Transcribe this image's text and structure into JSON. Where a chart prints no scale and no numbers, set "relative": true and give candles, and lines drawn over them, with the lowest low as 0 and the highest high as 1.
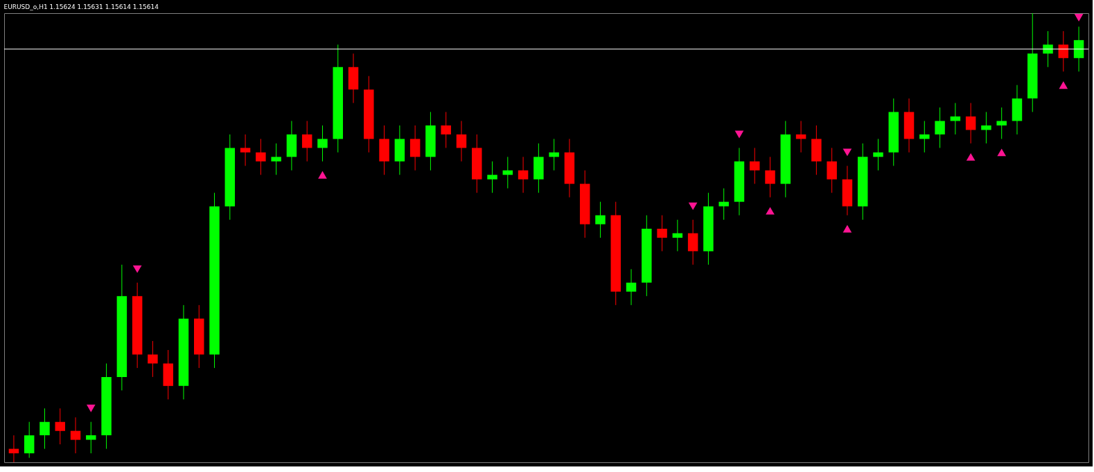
{
  "chart_data": {
    "type": "candlestick",
    "title": "EURUSD_o,H1  1.15624 1.15631 1.15614 1.15614",
    "relative": true,
    "categories": [
      null,
      null,
      null,
      null,
      null,
      null,
      null,
      null,
      null,
      null,
      null,
      null,
      null,
      null,
      null,
      null,
      null,
      null,
      null,
      null,
      null,
      null,
      null,
      null,
      null,
      null,
      null,
      null,
      null,
      null,
      null,
      null,
      null,
      null,
      null,
      null,
      null,
      null,
      null,
      null,
      null,
      null,
      null,
      null,
      null,
      null,
      null,
      null,
      null,
      null,
      null,
      null,
      null,
      null,
      null,
      null,
      null,
      null,
      null,
      null,
      null,
      null,
      null,
      null,
      null,
      null,
      null,
      null,
      null,
      null
    ],
    "ohlc": [
      [
        0.03,
        0.06,
        0.0,
        0.02
      ],
      [
        0.02,
        0.09,
        0.01,
        0.06
      ],
      [
        0.06,
        0.12,
        0.03,
        0.09
      ],
      [
        0.09,
        0.12,
        0.04,
        0.07
      ],
      [
        0.07,
        0.1,
        0.02,
        0.05
      ],
      [
        0.05,
        0.09,
        0.02,
        0.06
      ],
      [
        0.06,
        0.22,
        0.03,
        0.19
      ],
      [
        0.19,
        0.44,
        0.16,
        0.37
      ],
      [
        0.37,
        0.4,
        0.21,
        0.24
      ],
      [
        0.24,
        0.27,
        0.19,
        0.22
      ],
      [
        0.22,
        0.25,
        0.14,
        0.17
      ],
      [
        0.17,
        0.35,
        0.14,
        0.32
      ],
      [
        0.32,
        0.35,
        0.21,
        0.24
      ],
      [
        0.24,
        0.6,
        0.21,
        0.57
      ],
      [
        0.57,
        0.73,
        0.54,
        0.7
      ],
      [
        0.7,
        0.73,
        0.66,
        0.69
      ],
      [
        0.69,
        0.72,
        0.64,
        0.67
      ],
      [
        0.67,
        0.71,
        0.64,
        0.68
      ],
      [
        0.68,
        0.76,
        0.65,
        0.73
      ],
      [
        0.73,
        0.76,
        0.67,
        0.7
      ],
      [
        0.7,
        0.75,
        0.67,
        0.72
      ],
      [
        0.72,
        0.93,
        0.69,
        0.88
      ],
      [
        0.88,
        0.91,
        0.8,
        0.83
      ],
      [
        0.83,
        0.86,
        0.69,
        0.72
      ],
      [
        0.72,
        0.75,
        0.64,
        0.67
      ],
      [
        0.67,
        0.75,
        0.64,
        0.72
      ],
      [
        0.72,
        0.75,
        0.65,
        0.68
      ],
      [
        0.68,
        0.78,
        0.65,
        0.75
      ],
      [
        0.75,
        0.78,
        0.7,
        0.73
      ],
      [
        0.73,
        0.76,
        0.67,
        0.7
      ],
      [
        0.7,
        0.73,
        0.6,
        0.63
      ],
      [
        0.63,
        0.67,
        0.6,
        0.64
      ],
      [
        0.64,
        0.68,
        0.61,
        0.65
      ],
      [
        0.65,
        0.68,
        0.6,
        0.63
      ],
      [
        0.63,
        0.71,
        0.6,
        0.68
      ],
      [
        0.68,
        0.72,
        0.65,
        0.69
      ],
      [
        0.69,
        0.72,
        0.59,
        0.62
      ],
      [
        0.62,
        0.65,
        0.5,
        0.53
      ],
      [
        0.53,
        0.58,
        0.5,
        0.55
      ],
      [
        0.55,
        0.58,
        0.35,
        0.38
      ],
      [
        0.38,
        0.43,
        0.35,
        0.4
      ],
      [
        0.4,
        0.55,
        0.37,
        0.52
      ],
      [
        0.52,
        0.55,
        0.47,
        0.5
      ],
      [
        0.5,
        0.54,
        0.47,
        0.51
      ],
      [
        0.51,
        0.54,
        0.44,
        0.47
      ],
      [
        0.47,
        0.6,
        0.44,
        0.57
      ],
      [
        0.57,
        0.61,
        0.54,
        0.58
      ],
      [
        0.58,
        0.7,
        0.55,
        0.67
      ],
      [
        0.67,
        0.7,
        0.62,
        0.65
      ],
      [
        0.65,
        0.68,
        0.59,
        0.62
      ],
      [
        0.62,
        0.76,
        0.59,
        0.73
      ],
      [
        0.73,
        0.76,
        0.69,
        0.72
      ],
      [
        0.72,
        0.75,
        0.64,
        0.67
      ],
      [
        0.67,
        0.7,
        0.6,
        0.63
      ],
      [
        0.63,
        0.66,
        0.55,
        0.57
      ],
      [
        0.57,
        0.71,
        0.54,
        0.68
      ],
      [
        0.68,
        0.72,
        0.65,
        0.69
      ],
      [
        0.69,
        0.81,
        0.66,
        0.78
      ],
      [
        0.78,
        0.81,
        0.69,
        0.72
      ],
      [
        0.72,
        0.76,
        0.69,
        0.73
      ],
      [
        0.73,
        0.79,
        0.7,
        0.76
      ],
      [
        0.76,
        0.8,
        0.73,
        0.77
      ],
      [
        0.77,
        0.8,
        0.71,
        0.74
      ],
      [
        0.74,
        0.78,
        0.71,
        0.75
      ],
      [
        0.75,
        0.79,
        0.72,
        0.76
      ],
      [
        0.76,
        0.84,
        0.73,
        0.81
      ],
      [
        0.81,
        1.0,
        0.78,
        0.91
      ],
      [
        0.91,
        0.96,
        0.88,
        0.93
      ],
      [
        0.93,
        0.96,
        0.87,
        0.9
      ],
      [
        0.9,
        0.97,
        0.87,
        0.94
      ]
    ],
    "colors": [
      "#ff0000",
      "#00ff00",
      "#00ff00",
      "#ff0000",
      "#ff0000",
      "#00ff00",
      "#00ff00",
      "#00ff00",
      "#ff0000",
      "#ff0000",
      "#ff0000",
      "#00ff00",
      "#ff0000",
      "#00ff00",
      "#00ff00",
      "#ff0000",
      "#ff0000",
      "#00ff00",
      "#00ff00",
      "#ff0000",
      "#00ff00",
      "#00ff00",
      "#ff0000",
      "#ff0000",
      "#ff0000",
      "#00ff00",
      "#ff0000",
      "#00ff00",
      "#ff0000",
      "#ff0000",
      "#ff0000",
      "#00ff00",
      "#00ff00",
      "#ff0000",
      "#00ff00",
      "#00ff00",
      "#ff0000",
      "#ff0000",
      "#00ff00",
      "#ff0000",
      "#00ff00",
      "#00ff00",
      "#ff0000",
      "#00ff00",
      "#ff0000",
      "#00ff00",
      "#00ff00",
      "#00ff00",
      "#ff0000",
      "#ff0000",
      "#00ff00",
      "#ff0000",
      "#ff0000",
      "#ff0000",
      "#ff0000",
      "#00ff00",
      "#00ff00",
      "#00ff00",
      "#ff0000",
      "#00ff00",
      "#00ff00",
      "#00ff00",
      "#ff0000",
      "#00ff00",
      "#00ff00",
      "#00ff00",
      "#00ff00",
      "#00ff00",
      "#ff0000",
      "#00ff00"
    ],
    "series": [
      {
        "type": "scatter",
        "marker": "triangle",
        "color": "#ff1493",
        "values": [
          null,
          null,
          null,
          null,
          null,
          null,
          null,
          null,
          null,
          null,
          null,
          null,
          null,
          null,
          null,
          null,
          null,
          null,
          null,
          null,
          0.64,
          null,
          null,
          null,
          null,
          null,
          null,
          null,
          null,
          null,
          null,
          null,
          null,
          null,
          null,
          null,
          null,
          null,
          null,
          null,
          null,
          null,
          null,
          null,
          null,
          null,
          null,
          null,
          null,
          0.56,
          null,
          null,
          null,
          null,
          0.52,
          null,
          null,
          null,
          null,
          null,
          null,
          null,
          0.68,
          null,
          0.69,
          null,
          null,
          null,
          0.84,
          null
        ]
      },
      {
        "type": "scatter",
        "marker": "triangle-down",
        "color": "#ff1493",
        "values": [
          null,
          null,
          null,
          null,
          null,
          0.12,
          null,
          null,
          0.43,
          null,
          null,
          null,
          null,
          null,
          null,
          null,
          null,
          null,
          null,
          null,
          null,
          null,
          null,
          null,
          null,
          null,
          null,
          null,
          null,
          null,
          null,
          null,
          null,
          null,
          null,
          null,
          null,
          null,
          null,
          null,
          null,
          null,
          null,
          null,
          0.57,
          null,
          null,
          0.73,
          null,
          null,
          null,
          null,
          null,
          null,
          0.69,
          null,
          null,
          null,
          null,
          null,
          null,
          null,
          null,
          null,
          null,
          null,
          null,
          null,
          null,
          0.99
        ]
      }
    ],
    "ref_lines": [
      {
        "axis": "y",
        "value": 0.92,
        "color": "#ffffff"
      }
    ]
  }
}
